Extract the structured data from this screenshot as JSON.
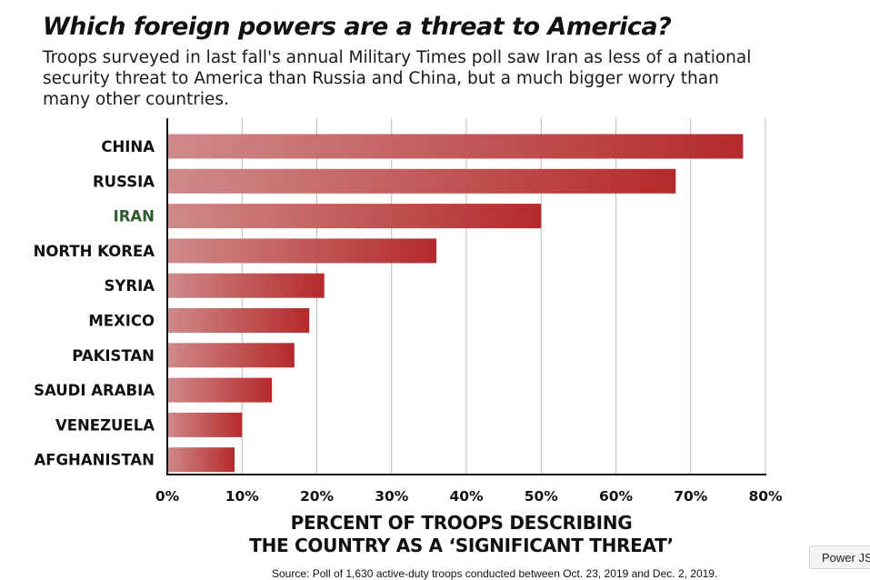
{
  "header": {
    "title": "Which foreign powers are a threat to America?",
    "subtitle": "Troops surveyed in last fall's annual Military Times poll saw Iran as less of a national security threat to America than Russia and China, but a much bigger worry than many other countries."
  },
  "chart_data": {
    "type": "bar",
    "orientation": "horizontal",
    "title": "Which foreign powers are a threat to America?",
    "categories": [
      "CHINA",
      "RUSSIA",
      "IRAN",
      "NORTH KOREA",
      "SYRIA",
      "MEXICO",
      "PAKISTAN",
      "SAUDI ARABIA",
      "VENEZUELA",
      "AFGHANISTAN"
    ],
    "values": [
      77,
      68,
      50,
      36,
      21,
      19,
      17,
      14,
      10,
      9
    ],
    "highlight_category": "IRAN",
    "xlabel_lines": [
      "PERCENT OF TROOPS DESCRIBING",
      "THE COUNTRY AS A ‘SIGNIFICANT THREAT’"
    ],
    "xticks": [
      0,
      10,
      20,
      30,
      40,
      50,
      60,
      70,
      80
    ],
    "xtick_labels": [
      "0%",
      "10%",
      "20%",
      "30%",
      "40%",
      "50%",
      "60%",
      "70%",
      "80%"
    ],
    "xlim": [
      0,
      80
    ],
    "grid": true,
    "colors": {
      "bar_start": "#cf8a8a",
      "bar_end": "#b52a2a",
      "highlight_label": "#2e5a2e",
      "label": "#111111",
      "grid": "#b9b9b9",
      "axis": "#111111"
    }
  },
  "footer": {
    "source": "Source: Poll of 1,630 active-duty troops conducted between Oct. 23, 2019 and Dec. 2, 2019."
  },
  "widget": {
    "label": "Power JS"
  }
}
